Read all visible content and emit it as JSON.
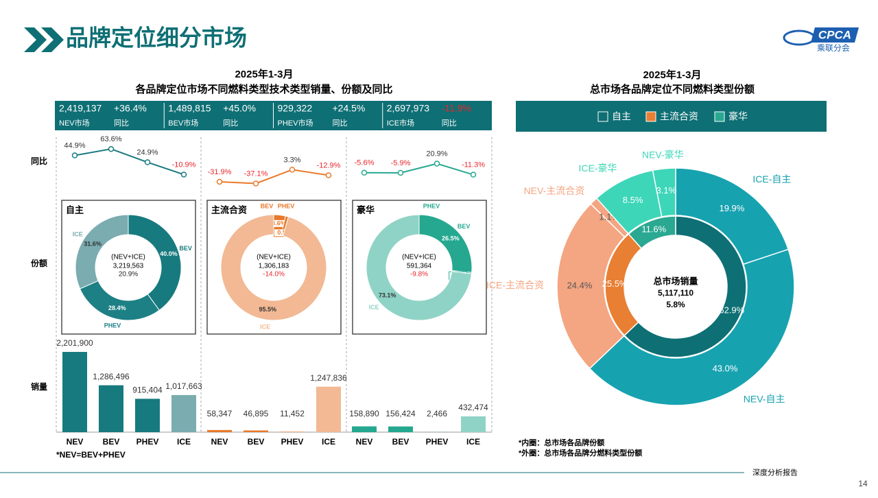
{
  "header": {
    "title": "品牌定位细分市场",
    "logo": "CPCA",
    "logo_sub": "乘联分会"
  },
  "left": {
    "title": "2025年1-3月",
    "subtitle": "各品牌定位市场不同燃料类型技术类型销量、份额及同比",
    "kpis": [
      {
        "value": "2,419,137",
        "change": "+36.4%",
        "label": "NEV市场",
        "change_label": "同比"
      },
      {
        "value": "1,489,815",
        "change": "+45.0%",
        "label": "BEV市场",
        "change_label": "同比"
      },
      {
        "value": "929,322",
        "change": "+24.5%",
        "label": "PHEV市场",
        "change_label": "同比"
      },
      {
        "value": "2,697,973",
        "change": "-11.9%",
        "label": "ICE市场",
        "change_label": "同比",
        "color": "#e8262a"
      }
    ],
    "row_labels": [
      "同比",
      "份额",
      "销量"
    ],
    "note": "*NEV=BEV+PHEV"
  },
  "chart_data": [
    {
      "type": "line",
      "categories": [
        "NEV",
        "BEV",
        "PHEV",
        "ICE"
      ],
      "values": [
        44.9,
        63.6,
        24.9,
        -10.9
      ],
      "value_labels": [
        "44.9%",
        "63.6%",
        "24.9%",
        "-10.9%"
      ],
      "color": "#1a7a80",
      "negative_color": "#e8262a"
    },
    {
      "type": "line",
      "categories": [
        "NEV",
        "BEV",
        "PHEV",
        "ICE"
      ],
      "values": [
        -31.9,
        -37.1,
        3.3,
        -12.9
      ],
      "value_labels": [
        "-31.9%",
        "-37.1%",
        "3.3%",
        "-12.9%"
      ],
      "color": "#e8792b",
      "negative_color": "#e8262a"
    },
    {
      "type": "line",
      "categories": [
        "NEV",
        "BEV",
        "PHEV",
        "ICE"
      ],
      "values": [
        -5.6,
        -5.9,
        20.9,
        -11.3
      ],
      "value_labels": [
        "-5.6%",
        "-5.9%",
        "20.9%",
        "-11.3%"
      ],
      "color": "#25a88f",
      "negative_color": "#e8262a"
    },
    {
      "type": "donut",
      "title": "自主",
      "categories": [
        "BEV",
        "PHEV",
        "ICE"
      ],
      "values": [
        40.0,
        28.4,
        31.6
      ],
      "value_labels": [
        "40.0%",
        "28.4%",
        "31.6%"
      ],
      "colors": [
        "#177a7e",
        "#1d8085",
        "#7aacb0"
      ],
      "center": [
        "(NEV+ICE)",
        "3,219,563",
        "20.9%"
      ],
      "change_color": "#222"
    },
    {
      "type": "donut",
      "title": "主流合资",
      "categories": [
        "BEV",
        "PHEV",
        "ICE"
      ],
      "values": [
        3.6,
        0.9,
        95.5
      ],
      "value_labels": [
        "3.6%",
        "0.9%",
        "95.5%"
      ],
      "colors": [
        "#e8792b",
        "#e8792b",
        "#f2b994"
      ],
      "center": [
        "(NEV+ICE)",
        "1,306,183",
        "-14.0%"
      ],
      "change_color": "#e8262a"
    },
    {
      "type": "donut",
      "title": "豪华",
      "categories": [
        "BEV",
        "PHEV",
        "ICE"
      ],
      "values": [
        26.5,
        0.4,
        73.1
      ],
      "value_labels": [
        "26.5%",
        "0.4%",
        "73.1%"
      ],
      "colors": [
        "#25a88f",
        "#25a88f",
        "#8fd3c6"
      ],
      "center": [
        "(NEV+ICE)",
        "591,364",
        "-9.8%"
      ],
      "change_color": "#e8262a"
    },
    {
      "type": "bar",
      "categories": [
        "NEV",
        "BEV",
        "PHEV",
        "ICE"
      ],
      "values": [
        2201900,
        1286496,
        915404,
        1017663
      ],
      "value_labels": [
        "2,201,900",
        "1,286,496",
        "915,404",
        "1,017,663"
      ],
      "colors": [
        "#177a7e",
        "#177a7e",
        "#177a7e",
        "#7aacb0"
      ]
    },
    {
      "type": "bar",
      "categories": [
        "NEV",
        "BEV",
        "PHEV",
        "ICE"
      ],
      "values": [
        58347,
        46895,
        11452,
        1247836
      ],
      "value_labels": [
        "58,347",
        "46,895",
        "11,452",
        "1,247,836"
      ],
      "colors": [
        "#e8792b",
        "#e8792b",
        "#e8792b",
        "#f2b994"
      ]
    },
    {
      "type": "bar",
      "categories": [
        "NEV",
        "BEV",
        "PHEV",
        "ICE"
      ],
      "values": [
        158890,
        156424,
        2466,
        432474
      ],
      "value_labels": [
        "158,890",
        "156,424",
        "2,466",
        "432,474"
      ],
      "colors": [
        "#25a88f",
        "#25a88f",
        "#25a88f",
        "#8fd3c6"
      ]
    },
    {
      "type": "nested-donut",
      "title": "2025年1-3月",
      "subtitle": "总市场各品牌定位不同燃料类型份额",
      "legend": [
        "自主",
        "主流合资",
        "豪华"
      ],
      "inner": {
        "categories": [
          "自主",
          "主流合资",
          "豪华"
        ],
        "values": [
          62.9,
          25.5,
          11.6
        ],
        "value_labels": [
          "62.9%",
          "25.5%",
          "11.6%"
        ],
        "colors": [
          "#0e6f74",
          "#e87f33",
          "#2aa891"
        ]
      },
      "outer": {
        "categories": [
          "ICE-自主",
          "NEV-自主",
          "ICE-主流合资",
          "NEV-主流合资",
          "ICE-豪华",
          "NEV-豪华"
        ],
        "values": [
          19.9,
          43.0,
          24.4,
          1.1,
          8.5,
          3.1
        ],
        "value_labels": [
          "19.9%",
          "43.0%",
          "24.4%",
          "1.1%",
          "8.5%",
          "3.1%"
        ],
        "colors": [
          "#17a2b0",
          "#17a2b0",
          "#f4a582",
          "#f4a582",
          "#3dd6b8",
          "#3dd6b8"
        ]
      },
      "center": [
        "总市场销量",
        "5,117,110",
        "5.8%"
      ],
      "notes": [
        "*内圈：总市场各品牌份额",
        "*外圈：总市场各品牌分燃料类型份额"
      ]
    }
  ],
  "footer": {
    "text": "深度分析报告",
    "page": "14"
  }
}
